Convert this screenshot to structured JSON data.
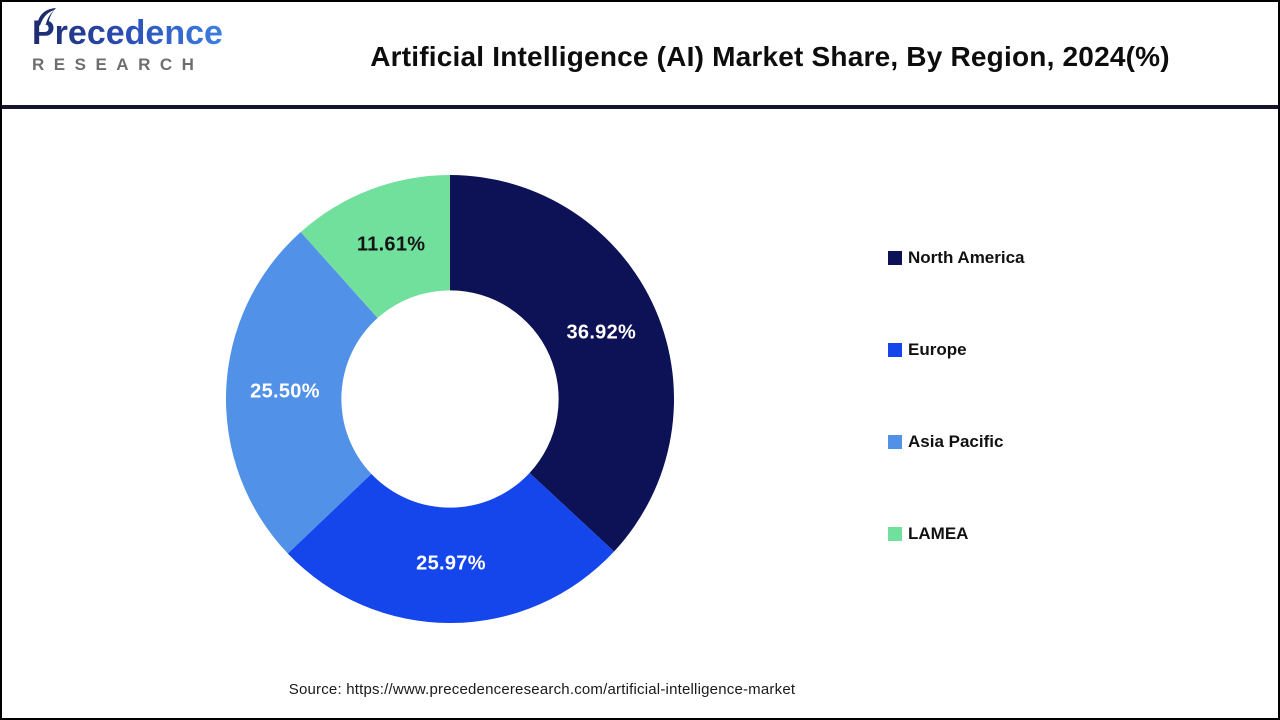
{
  "header": {
    "logo": {
      "line1": "Precedence",
      "line2": "RESEARCH"
    },
    "title": "Artificial Intelligence (AI) Market Share, By Region, 2024(%)"
  },
  "chart_data": {
    "type": "pie",
    "subtype": "donut",
    "title": "Artificial Intelligence (AI) Market Share, By Region, 2024(%)",
    "categories": [
      "North America",
      "Europe",
      "Asia Pacific",
      "LAMEA"
    ],
    "values": [
      36.92,
      25.97,
      25.5,
      11.61
    ],
    "labels": [
      "36.92%",
      "25.97%",
      "25.50%",
      "11.61%"
    ],
    "colors": [
      "#0d1155",
      "#1546ec",
      "#5191e8",
      "#71e09c"
    ],
    "label_colors": [
      "#ffffff",
      "#ffffff",
      "#ffffff",
      "#141414"
    ],
    "start_angle_deg": 0,
    "direction": "clockwise",
    "inner_radius_ratio": 0.485,
    "label_radius_ratio": 0.737,
    "legend_position": "right"
  },
  "legend": {
    "items": [
      {
        "label": "North America",
        "color": "#0d1155"
      },
      {
        "label": "Europe",
        "color": "#1546ec"
      },
      {
        "label": "Asia Pacific",
        "color": "#5191e8"
      },
      {
        "label": "LAMEA",
        "color": "#71e09c"
      }
    ]
  },
  "footer": {
    "source": "Source: https://www.precedenceresearch.com/artificial-intelligence-market"
  }
}
